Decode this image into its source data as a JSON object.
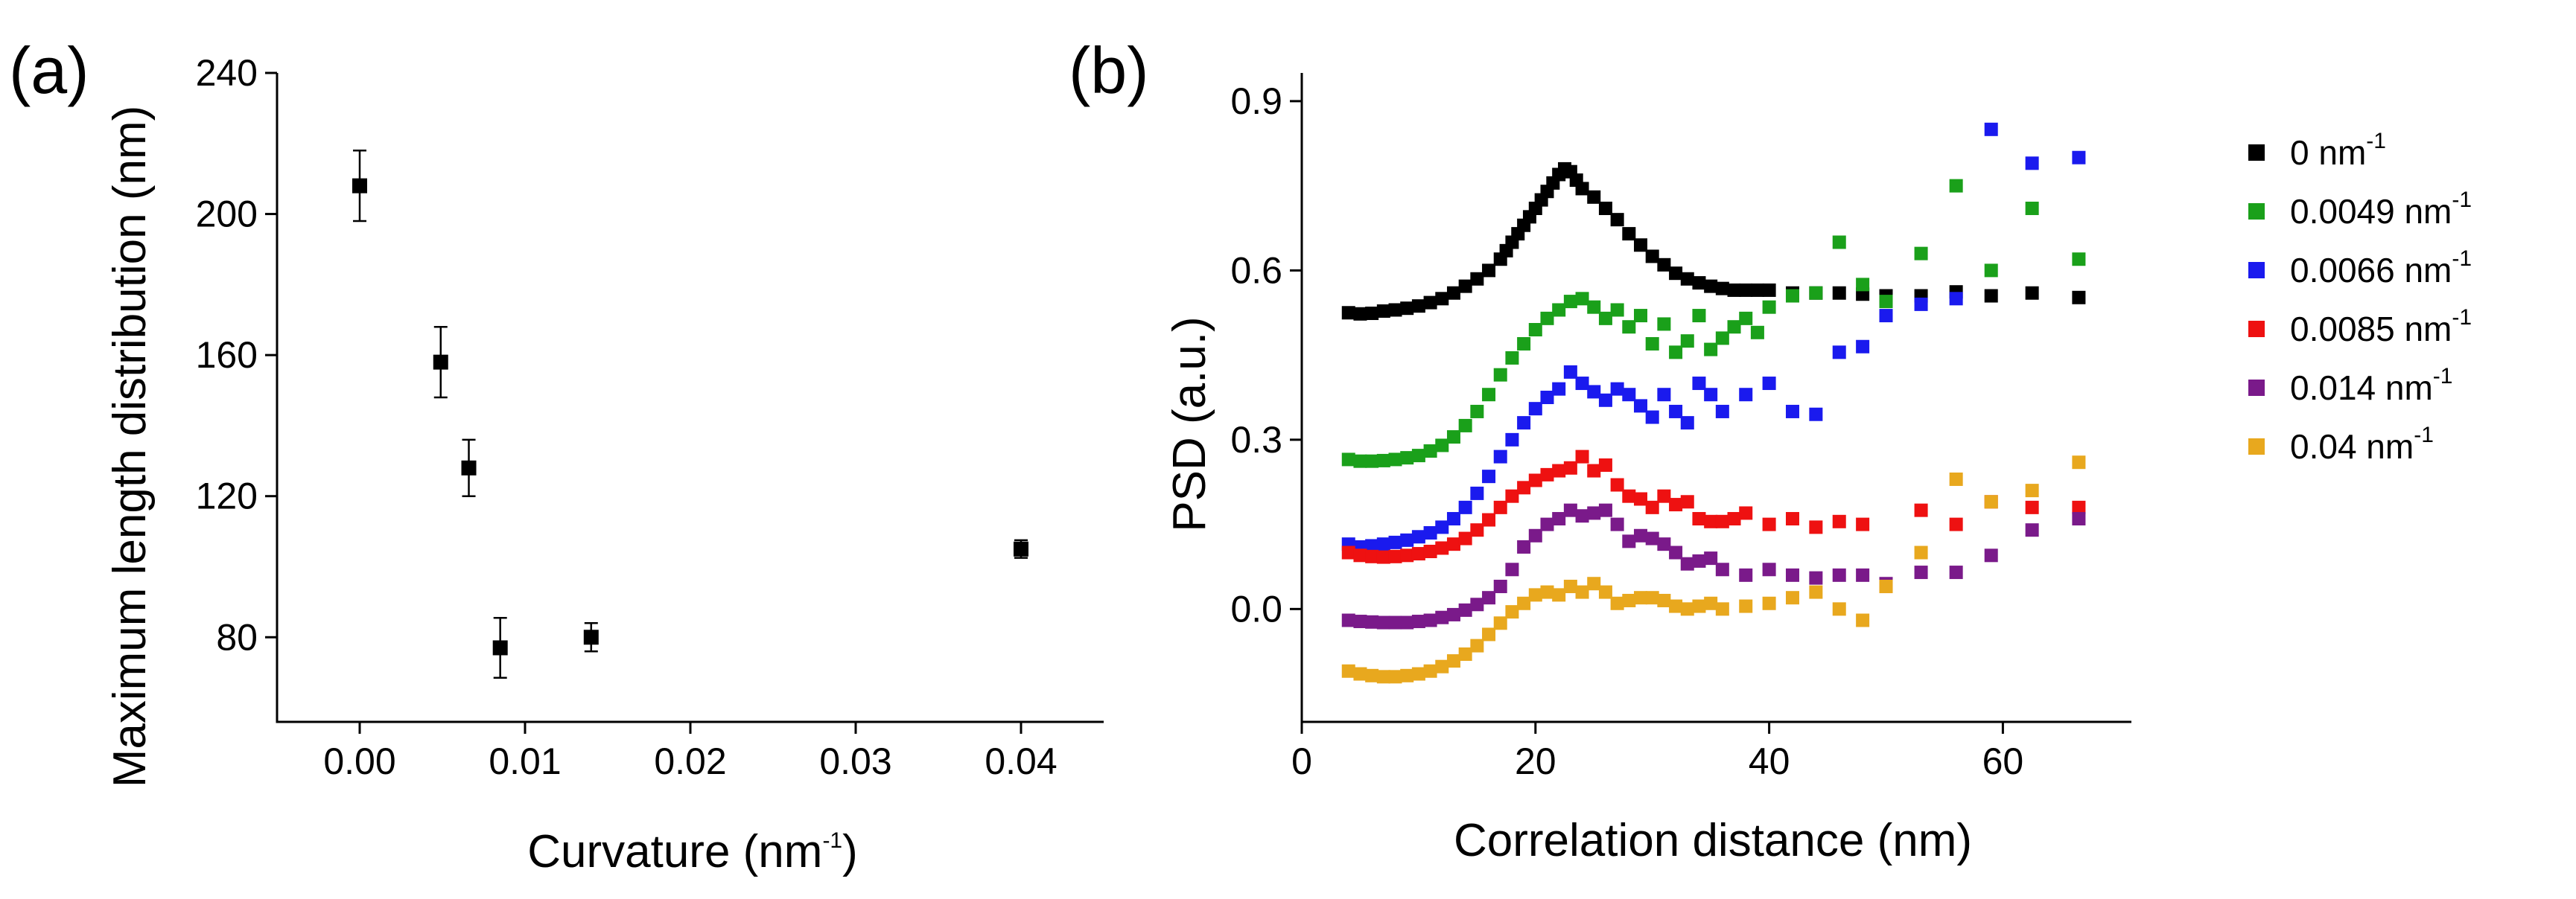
{
  "chart_data": [
    {
      "panel_label": "(a)",
      "type": "scatter",
      "xlabel_main": "Curvature (nm",
      "xlabel_sup": "-1",
      "xlabel_end": ")",
      "ylabel": "Maximum length distribution (nm)",
      "xlim": [
        -0.005,
        0.045
      ],
      "ylim": [
        56,
        240
      ],
      "x_ticks": [
        "0.00",
        "0.01",
        "0.02",
        "0.03",
        "0.04"
      ],
      "y_ticks": [
        "80",
        "120",
        "160",
        "200",
        "240"
      ],
      "points": [
        {
          "x": 0.0,
          "y": 208,
          "err": 10
        },
        {
          "x": 0.0049,
          "y": 158,
          "err": 10
        },
        {
          "x": 0.0066,
          "y": 128,
          "err": 8
        },
        {
          "x": 0.0085,
          "y": 77,
          "err": 8.5
        },
        {
          "x": 0.014,
          "y": 80,
          "err": 4
        },
        {
          "x": 0.04,
          "y": 105,
          "err": 2.5
        }
      ]
    },
    {
      "panel_label": "(b)",
      "type": "scatter",
      "xlabel": "Correlation distance (nm)",
      "ylabel": "PSD (a.u.)",
      "xlim": [
        0,
        71
      ],
      "ylim": [
        -0.2,
        0.95
      ],
      "x_ticks": [
        "0",
        "20",
        "40",
        "60"
      ],
      "y_ticks": [
        "0.0",
        "0.3",
        "0.6",
        "0.9"
      ],
      "legend_placement": "right",
      "series": [
        {
          "name": "0 nm",
          "sup": "-1",
          "color": "#000000",
          "x": [
            4,
            5,
            6,
            7,
            8,
            9,
            10,
            11,
            12,
            13,
            14,
            15,
            16,
            17,
            17.5,
            18,
            18.5,
            19,
            19.5,
            20,
            20.5,
            21,
            21.5,
            22,
            22.5,
            23,
            23.5,
            24,
            25,
            26,
            27,
            28,
            29,
            30,
            31,
            32,
            33,
            34,
            35,
            36,
            37,
            38,
            39,
            40,
            42,
            44,
            46,
            48,
            50,
            53,
            56,
            59,
            62.5,
            66.5
          ],
          "y": [
            0.525,
            0.523,
            0.524,
            0.528,
            0.53,
            0.533,
            0.537,
            0.543,
            0.55,
            0.56,
            0.572,
            0.585,
            0.6,
            0.62,
            0.635,
            0.65,
            0.665,
            0.68,
            0.695,
            0.71,
            0.725,
            0.74,
            0.755,
            0.77,
            0.78,
            0.775,
            0.76,
            0.745,
            0.73,
            0.71,
            0.69,
            0.665,
            0.645,
            0.625,
            0.61,
            0.595,
            0.585,
            0.578,
            0.572,
            0.568,
            0.565,
            0.565,
            0.565,
            0.565,
            0.56,
            0.56,
            0.56,
            0.558,
            0.555,
            0.555,
            0.562,
            0.555,
            0.56,
            0.552
          ]
        },
        {
          "name": "0.0049 nm",
          "sup": "-1",
          "color": "#1aa01a",
          "x": [
            4,
            5,
            6,
            7,
            8,
            9,
            10,
            11,
            12,
            13,
            14,
            15,
            16,
            17,
            18,
            19,
            20,
            21,
            22,
            23,
            24,
            25,
            26,
            27,
            28,
            29,
            30,
            31,
            32,
            33,
            34,
            35,
            36,
            37,
            38,
            39,
            40,
            42,
            44,
            46,
            48,
            50,
            53,
            56,
            59,
            62.5,
            66.5
          ],
          "y": [
            0.265,
            0.262,
            0.262,
            0.263,
            0.265,
            0.268,
            0.272,
            0.28,
            0.29,
            0.305,
            0.325,
            0.35,
            0.38,
            0.415,
            0.445,
            0.47,
            0.495,
            0.515,
            0.53,
            0.545,
            0.55,
            0.535,
            0.515,
            0.53,
            0.5,
            0.52,
            0.47,
            0.505,
            0.455,
            0.475,
            0.52,
            0.46,
            0.48,
            0.5,
            0.515,
            0.49,
            0.535,
            0.555,
            0.56,
            0.65,
            0.575,
            0.545,
            0.63,
            0.75,
            0.6,
            0.71,
            0.62
          ]
        },
        {
          "name": "0.0066 nm",
          "sup": "-1",
          "color": "#1a1aee",
          "x": [
            4,
            5,
            6,
            7,
            8,
            9,
            10,
            11,
            12,
            13,
            14,
            15,
            16,
            17,
            18,
            19,
            20,
            21,
            22,
            23,
            24,
            25,
            26,
            27,
            28,
            29,
            30,
            31,
            32,
            33,
            34,
            35,
            36,
            38,
            40,
            42,
            44,
            46,
            48,
            50,
            53,
            56,
            59,
            62.5,
            66.5
          ],
          "y": [
            0.115,
            0.11,
            0.112,
            0.115,
            0.118,
            0.122,
            0.128,
            0.135,
            0.145,
            0.16,
            0.18,
            0.205,
            0.235,
            0.27,
            0.3,
            0.33,
            0.355,
            0.375,
            0.39,
            0.42,
            0.4,
            0.385,
            0.37,
            0.39,
            0.38,
            0.36,
            0.34,
            0.38,
            0.35,
            0.33,
            0.4,
            0.38,
            0.35,
            0.38,
            0.4,
            0.35,
            0.345,
            0.455,
            0.465,
            0.52,
            0.54,
            0.55,
            0.85,
            0.79,
            0.8
          ]
        },
        {
          "name": "0.0085 nm",
          "sup": "-1",
          "color": "#ee1111",
          "x": [
            4,
            5,
            6,
            7,
            8,
            9,
            10,
            11,
            12,
            13,
            14,
            15,
            16,
            17,
            18,
            19,
            20,
            21,
            22,
            23,
            24,
            25,
            26,
            27,
            28,
            29,
            30,
            31,
            32,
            33,
            34,
            35,
            36,
            37,
            38,
            40,
            42,
            44,
            46,
            48,
            50,
            53,
            56,
            59,
            62.5,
            66.5
          ],
          "y": [
            0.1,
            0.095,
            0.093,
            0.092,
            0.093,
            0.095,
            0.098,
            0.102,
            0.108,
            0.115,
            0.125,
            0.14,
            0.158,
            0.18,
            0.2,
            0.215,
            0.228,
            0.238,
            0.245,
            0.25,
            0.27,
            0.245,
            0.255,
            0.22,
            0.2,
            0.195,
            0.18,
            0.2,
            0.185,
            0.19,
            0.16,
            0.155,
            0.155,
            0.16,
            0.17,
            0.15,
            0.16,
            0.145,
            0.155,
            0.15,
            0.04,
            0.175,
            0.15,
            0.19,
            0.18,
            0.18
          ]
        },
        {
          "name": "0.014 nm",
          "sup": "-1",
          "color": "#7a1a8a",
          "x": [
            4,
            5,
            6,
            7,
            8,
            9,
            10,
            11,
            12,
            13,
            14,
            15,
            16,
            17,
            18,
            19,
            20,
            21,
            22,
            23,
            24,
            25,
            26,
            27,
            28,
            29,
            30,
            31,
            32,
            33,
            34,
            35,
            36,
            38,
            40,
            42,
            44,
            46,
            48,
            50,
            53,
            56,
            59,
            62.5,
            66.5
          ],
          "y": [
            -0.02,
            -0.022,
            -0.023,
            -0.024,
            -0.024,
            -0.024,
            -0.022,
            -0.02,
            -0.015,
            -0.01,
            -0.002,
            0.008,
            0.02,
            0.04,
            0.07,
            0.11,
            0.13,
            0.15,
            0.16,
            0.175,
            0.165,
            0.17,
            0.175,
            0.15,
            0.12,
            0.13,
            0.125,
            0.115,
            0.1,
            0.08,
            0.085,
            0.09,
            0.07,
            0.06,
            0.07,
            0.06,
            0.055,
            0.06,
            0.06,
            0.045,
            0.065,
            0.065,
            0.095,
            0.14,
            0.16
          ]
        },
        {
          "name": "0.04 nm",
          "sup": "-1",
          "color": "#e8a81e",
          "x": [
            4,
            5,
            6,
            7,
            8,
            9,
            10,
            11,
            12,
            13,
            14,
            15,
            16,
            17,
            18,
            19,
            20,
            21,
            22,
            23,
            24,
            25,
            26,
            27,
            28,
            29,
            30,
            31,
            32,
            33,
            34,
            35,
            36,
            38,
            40,
            42,
            44,
            46,
            48,
            50,
            53,
            56,
            59,
            62.5,
            66.5
          ],
          "y": [
            -0.11,
            -0.115,
            -0.118,
            -0.12,
            -0.12,
            -0.118,
            -0.115,
            -0.11,
            -0.102,
            -0.092,
            -0.08,
            -0.065,
            -0.045,
            -0.025,
            -0.005,
            0.01,
            0.025,
            0.03,
            0.025,
            0.04,
            0.03,
            0.045,
            0.03,
            0.01,
            0.015,
            0.02,
            0.02,
            0.015,
            0.005,
            0.0,
            0.005,
            0.01,
            0.0,
            0.005,
            0.01,
            0.02,
            0.03,
            0.0,
            -0.02,
            0.04,
            0.1,
            0.23,
            0.19,
            0.21,
            0.26
          ]
        }
      ]
    }
  ]
}
